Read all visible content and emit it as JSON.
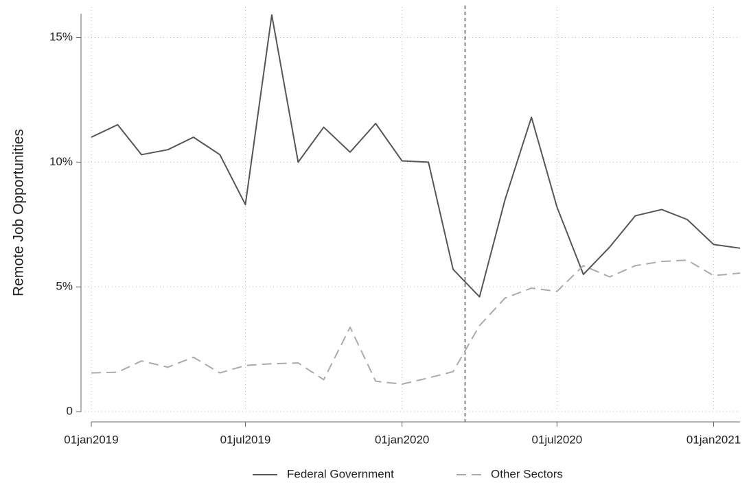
{
  "chart_data": {
    "type": "line",
    "y_label": "Remote Job Opportunities",
    "x": [
      "2019-01-01",
      "2019-02-01",
      "2019-03-01",
      "2019-04-01",
      "2019-05-01",
      "2019-06-01",
      "2019-07-01",
      "2019-08-01",
      "2019-09-01",
      "2019-10-01",
      "2019-11-01",
      "2019-12-01",
      "2020-01-01",
      "2020-02-01",
      "2020-03-01",
      "2020-04-01",
      "2020-05-01",
      "2020-06-01",
      "2020-07-01",
      "2020-08-01",
      "2020-09-01",
      "2020-10-01",
      "2020-11-01",
      "2020-12-01",
      "2021-01-01",
      "2021-02-01"
    ],
    "series": [
      {
        "name": "Federal Government",
        "color": "#555555",
        "dash": "solid",
        "values": [
          11.0,
          11.5,
          10.3,
          10.5,
          11.0,
          10.3,
          8.3,
          15.9,
          10.0,
          11.4,
          10.4,
          11.55,
          10.05,
          10.0,
          5.7,
          4.6,
          8.5,
          11.8,
          8.2,
          5.5,
          6.6,
          7.85,
          8.1,
          7.7,
          6.7,
          6.55
        ]
      },
      {
        "name": "Other Sectors",
        "color": "#aaaaaa",
        "dash": "dashed",
        "values": [
          1.55,
          1.58,
          2.03,
          1.78,
          2.18,
          1.55,
          1.85,
          1.92,
          1.95,
          1.28,
          3.38,
          1.22,
          1.1,
          1.35,
          1.6,
          3.45,
          4.55,
          4.95,
          4.82,
          5.85,
          5.4,
          5.85,
          6.02,
          6.07,
          5.45,
          5.55
        ]
      }
    ],
    "xlim": [
      "2019-01-01",
      "2021-02-01"
    ],
    "xticks": [
      {
        "value": "2019-01-01",
        "label": "01jan2019"
      },
      {
        "value": "2019-07-01",
        "label": "01jul2019"
      },
      {
        "value": "2020-01-01",
        "label": "01jan2020"
      },
      {
        "value": "2020-07-01",
        "label": "01jul2020"
      },
      {
        "value": "2021-01-01",
        "label": "01jan2021"
      }
    ],
    "ylim": [
      0,
      16.5
    ],
    "yticks": [
      0,
      {
        "value": 5,
        "label": "5%"
      },
      {
        "value": 10,
        "label": "10%"
      },
      {
        "value": 15,
        "label": "15%"
      }
    ],
    "vline": "2020-03-15",
    "grid": true,
    "legend": "bottom"
  }
}
